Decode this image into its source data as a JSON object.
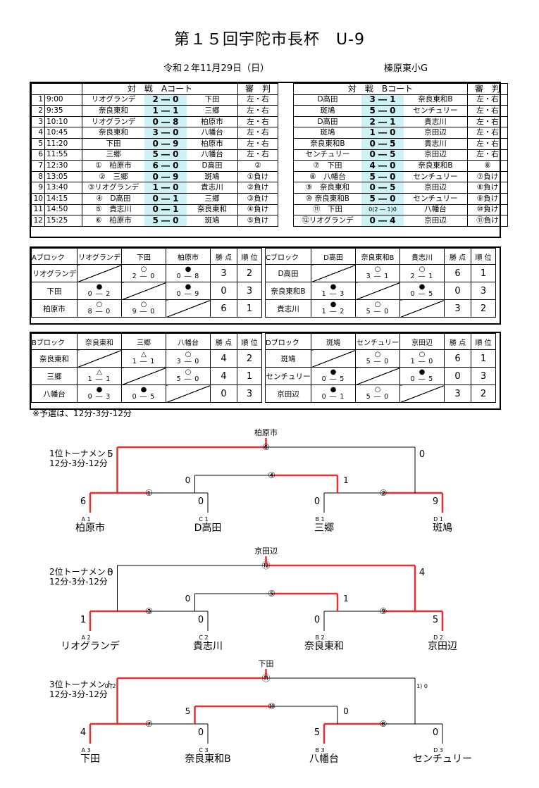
{
  "header": {
    "title": "第１５回宇陀市長杯　U-9",
    "date": "令和２年11月29日（日）",
    "venue": "榛原東小G"
  },
  "schedule_a": {
    "head_match": "対　戦　Aコート",
    "head_ref": "審　判",
    "rows": [
      [
        "1",
        "9:00",
        "リオグランデ",
        "2 ― 0",
        "下田",
        "左・右"
      ],
      [
        "2",
        "9:35",
        "奈良東和",
        "1 ― 1",
        "三郷",
        "左・右"
      ],
      [
        "3",
        "10:10",
        "リオグランデ",
        "0 ― 8",
        "柏原市",
        "左・右"
      ],
      [
        "4",
        "10:45",
        "奈良東和",
        "3 ― 0",
        "八幡台",
        "左・右"
      ],
      [
        "5",
        "11:20",
        "下田",
        "0 ― 9",
        "柏原市",
        "左・右"
      ],
      [
        "6",
        "11:55",
        "三郷",
        "5 ― 0",
        "八幡台",
        "左・右"
      ],
      [
        "7",
        "12:30",
        "①　柏原市",
        "6 ― 0",
        "D高田",
        "②"
      ],
      [
        "8",
        "13:05",
        "②　三郷",
        "0 ― 9",
        "斑鳩",
        "①負け"
      ],
      [
        "9",
        "13:40",
        "③リオグランデ",
        "1 ― 0",
        "貴志川",
        "②負け"
      ],
      [
        "10",
        "14:15",
        "④　D高田",
        "0 ― 1",
        "三郷",
        "③負け"
      ],
      [
        "11",
        "14:50",
        "⑤　貴志川",
        "0 ― 1",
        "奈良東和",
        "④負け"
      ],
      [
        "12",
        "15:25",
        "⑥　柏原市",
        "5 ― 0",
        "斑鳩",
        "⑤負け"
      ]
    ]
  },
  "schedule_b": {
    "head_match": "対　戦　Bコート",
    "head_ref": "審　判",
    "rows": [
      [
        "D高田",
        "3 ― 1",
        "奈良東和B",
        "左・右"
      ],
      [
        "斑鳩",
        "5 ― 0",
        "センチュリー",
        "左・右"
      ],
      [
        "D高田",
        "2 ― 1",
        "貴志川",
        "左・右"
      ],
      [
        "斑鳩",
        "1 ― 0",
        "京田辺",
        "左・右"
      ],
      [
        "奈良東和B",
        "0 ― 5",
        "貴志川",
        "左・右"
      ],
      [
        "センチュリー",
        "0 ― 5",
        "京田辺",
        "左・右"
      ],
      [
        "⑦　下田",
        "4 ― 0",
        "奈良東和B",
        "⑧"
      ],
      [
        "⑧　八幡台",
        "5 ― 0",
        "センチュリー",
        "⑦負け"
      ],
      [
        "⑨　奈良東和",
        "0 ― 5",
        "京田辺",
        "⑧負け"
      ],
      [
        "⑩ 奈良東和B",
        "5 ― 0",
        "センチュリー",
        "⑨負け"
      ],
      [
        "⑪　下田",
        "0(2 ― 1)0",
        "八幡台",
        "⑩負け"
      ],
      [
        "⑫リオグランデ",
        "0 ― 4",
        "京田辺",
        "⑪負け"
      ]
    ]
  },
  "blocks": [
    {
      "name": "Aブロック",
      "teams": [
        "リオグランデ",
        "下田",
        "柏原市"
      ],
      "wins_h": "勝 点",
      "rank_h": "順 位",
      "cells": [
        [
          null,
          [
            "○",
            "2 ― 0"
          ],
          [
            "●",
            "0 ― 8"
          ]
        ],
        [
          [
            "●",
            "0 ― 2"
          ],
          null,
          [
            "●",
            "0 ― 9"
          ]
        ],
        [
          [
            "○",
            "8 ― 0"
          ],
          [
            "○",
            "9 ― 0"
          ],
          null
        ]
      ],
      "pts": [
        "3",
        "0",
        "6"
      ],
      "rank": [
        "2",
        "3",
        "1"
      ]
    },
    {
      "name": "Cブロック",
      "teams": [
        "D高田",
        "奈良東和B",
        "貴志川"
      ],
      "wins_h": "勝 点",
      "rank_h": "順 位",
      "cells": [
        [
          null,
          [
            "○",
            "3 ― 1"
          ],
          [
            "○",
            "2 ― 1"
          ]
        ],
        [
          [
            "●",
            "1 ― 3"
          ],
          null,
          [
            "●",
            "0 ― 5"
          ]
        ],
        [
          [
            "●",
            "1 ― 2"
          ],
          [
            "○",
            "5 ― 0"
          ],
          null
        ]
      ],
      "pts": [
        "6",
        "0",
        "3"
      ],
      "rank": [
        "1",
        "3",
        "2"
      ]
    },
    {
      "name": "Bブロック",
      "teams": [
        "奈良東和",
        "三郷",
        "八幡台"
      ],
      "wins_h": "勝 点",
      "rank_h": "順 位",
      "cells": [
        [
          null,
          [
            "△",
            "1 ― 1"
          ],
          [
            "○",
            "3 ― 0"
          ]
        ],
        [
          [
            "△",
            "1 ― 1"
          ],
          null,
          [
            "○",
            "5 ― 0"
          ]
        ],
        [
          [
            "●",
            "0 ― 3"
          ],
          [
            "●",
            "0 ― 5"
          ],
          null
        ]
      ],
      "pts": [
        "4",
        "4",
        "0"
      ],
      "rank": [
        "2",
        "1",
        "3"
      ]
    },
    {
      "name": "Dブロック",
      "teams": [
        "斑鳩",
        "センチュリー",
        "京田辺"
      ],
      "wins_h": "勝 点",
      "rank_h": "順 位",
      "cells": [
        [
          null,
          [
            "○",
            "5 ― 0"
          ],
          [
            "○",
            "1 ― 0"
          ]
        ],
        [
          [
            "●",
            "0 ― 5"
          ],
          null,
          [
            "●",
            "0 ― 5"
          ]
        ],
        [
          [
            "●",
            "0 ― 1"
          ],
          [
            "○",
            "5 ― 0"
          ],
          null
        ]
      ],
      "pts": [
        "6",
        "0",
        "3"
      ],
      "rank": [
        "1",
        "3",
        "2"
      ]
    }
  ],
  "note": "※予選は、12分-3分-12分",
  "tournaments": [
    {
      "title": "1位トーナメント",
      "time": "12分-3分-12分",
      "winner": "柏原市",
      "seeds": [
        "A 1",
        "C 1",
        "B 1",
        "D 1"
      ],
      "teams": [
        "柏原市",
        "D高田",
        "三郷",
        "斑鳩"
      ],
      "r1_scores": [
        "6",
        "0",
        "0",
        "9"
      ],
      "semi_scores": [
        "0",
        "1"
      ],
      "final_scores": [
        "5",
        "0"
      ],
      "r1_labels": [
        "①",
        "②"
      ],
      "semi_label": "④",
      "final_label": "⑥"
    },
    {
      "title": "2位トーナメント",
      "time": "12分-3分-12分",
      "winner": "京田辺",
      "seeds": [
        "A 2",
        "C 2",
        "B 2",
        "D 2"
      ],
      "teams": [
        "リオグランデ",
        "貴志川",
        "奈良東和",
        "京田辺"
      ],
      "r1_scores": [
        "1",
        "0",
        "0",
        "5"
      ],
      "semi_scores": [
        "0",
        "1"
      ],
      "final_scores": [
        "0",
        "4"
      ],
      "r1_labels": [
        "③",
        "⑨"
      ],
      "semi_label": "⑤",
      "final_label": "⑫"
    },
    {
      "title": "3位トーナメント",
      "time": "12分-3分-12分",
      "winner": "下田",
      "seeds": [
        "A 3",
        "C 3",
        "B 3",
        "D 3"
      ],
      "teams": [
        "下田",
        "奈良東和B",
        "八幡台",
        "センチュリー"
      ],
      "r1_scores": [
        "4",
        "0",
        "5",
        "0"
      ],
      "semi_scores": [
        "5",
        "0"
      ],
      "final_scores": [
        "0 (2",
        "1) 0"
      ],
      "r1_labels": [
        "⑦",
        "⑧"
      ],
      "semi_label": "⑩",
      "final_label": "⑪"
    }
  ]
}
